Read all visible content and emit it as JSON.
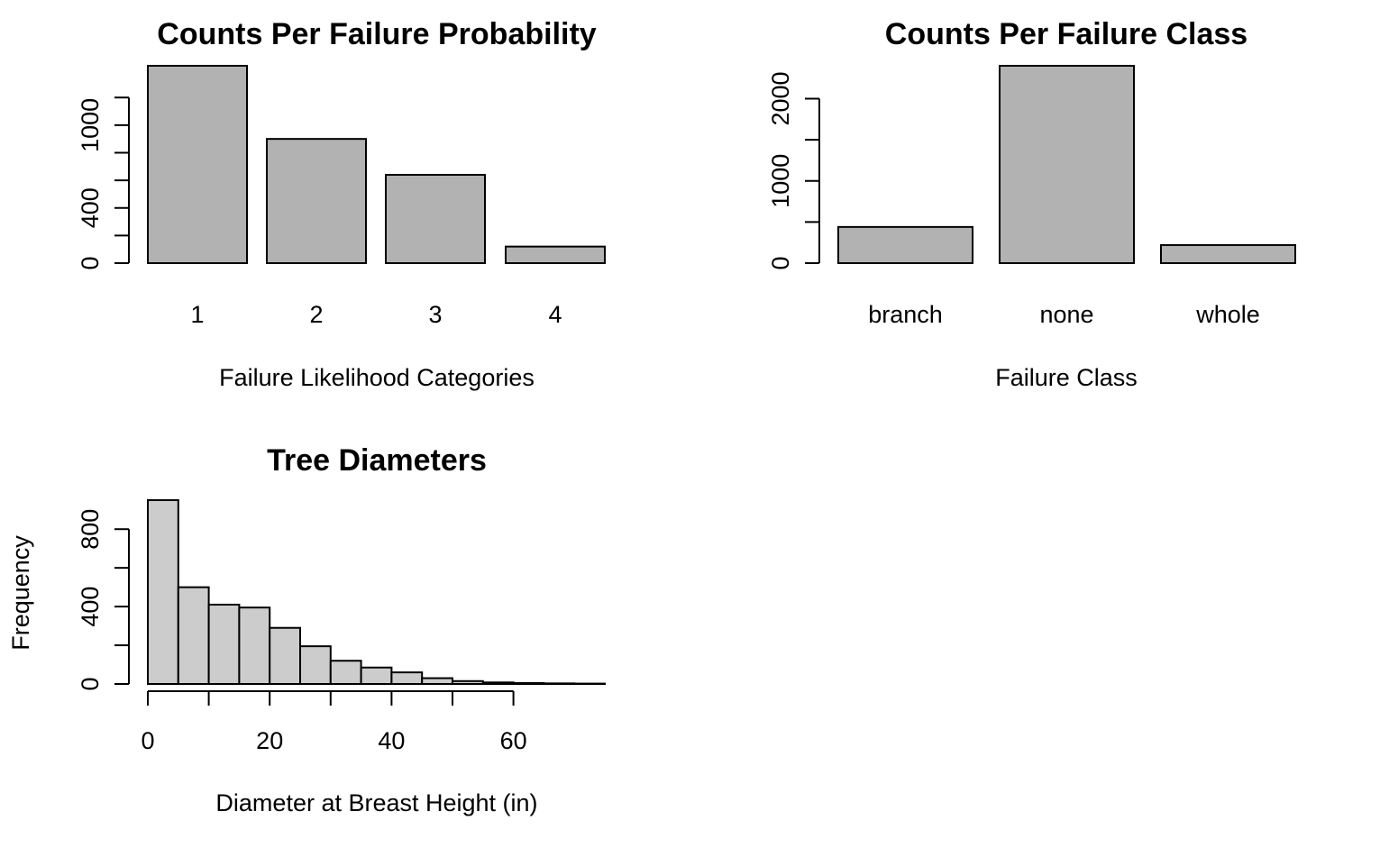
{
  "chart_data": [
    {
      "type": "bar",
      "title": "Counts Per Failure Probability",
      "xlabel": "Failure Likelihood Categories",
      "ylabel": "",
      "categories": [
        "1",
        "2",
        "3",
        "4"
      ],
      "values": [
        1430,
        900,
        640,
        120
      ],
      "ylim": [
        0,
        1430
      ],
      "y_ticks": [
        0,
        200,
        400,
        600,
        800,
        1000,
        1200
      ],
      "y_tick_labels": [
        "0",
        "",
        "400",
        "",
        "",
        "1000",
        ""
      ],
      "bar_color": "#b2b2b2",
      "grid": false
    },
    {
      "type": "bar",
      "title": "Counts Per Failure Class",
      "xlabel": "Failure Class",
      "ylabel": "",
      "categories": [
        "branch",
        "none",
        "whole"
      ],
      "values": [
        440,
        2400,
        220
      ],
      "ylim": [
        0,
        2400
      ],
      "y_ticks": [
        0,
        500,
        1000,
        1500,
        2000
      ],
      "y_tick_labels": [
        "0",
        "",
        "1000",
        "",
        "2000"
      ],
      "bar_color": "#b2b2b2",
      "grid": false
    },
    {
      "type": "bar",
      "subtype": "histogram",
      "title": "Tree Diameters",
      "xlabel": "Diameter at Breast Height (in)",
      "ylabel": "Frequency",
      "bins": [
        [
          0,
          5
        ],
        [
          5,
          10
        ],
        [
          10,
          15
        ],
        [
          15,
          20
        ],
        [
          20,
          25
        ],
        [
          25,
          30
        ],
        [
          30,
          35
        ],
        [
          35,
          40
        ],
        [
          40,
          45
        ],
        [
          45,
          50
        ],
        [
          50,
          55
        ],
        [
          55,
          60
        ],
        [
          60,
          65
        ],
        [
          65,
          70
        ],
        [
          70,
          75
        ]
      ],
      "values": [
        950,
        500,
        410,
        395,
        290,
        195,
        120,
        85,
        60,
        30,
        15,
        8,
        5,
        3,
        2
      ],
      "ylim": [
        0,
        950
      ],
      "xlim": [
        0,
        75
      ],
      "x_ticks": [
        0,
        10,
        20,
        30,
        40,
        50,
        60
      ],
      "x_tick_labels": [
        "0",
        "",
        "20",
        "",
        "40",
        "",
        "60"
      ],
      "y_ticks": [
        0,
        200,
        400,
        600,
        800
      ],
      "y_tick_labels": [
        "0",
        "",
        "400",
        "",
        "800"
      ],
      "bar_color": "#cccccc",
      "grid": false
    }
  ]
}
